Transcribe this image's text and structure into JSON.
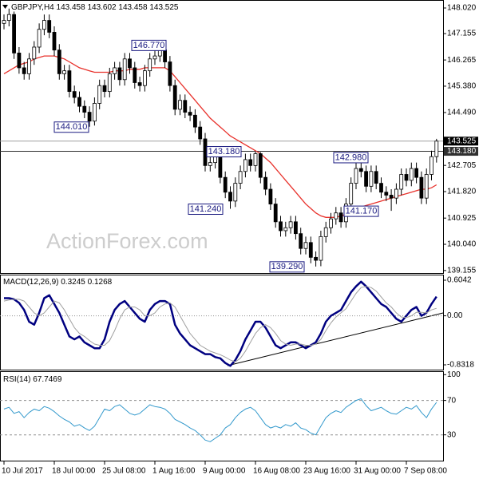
{
  "chart_data": [
    {
      "type": "candlestick",
      "title": "GBPJPY,H4",
      "last_bar": [
        {
          "value": 143.458,
          "label": "143.458"
        },
        {
          "value": 143.602,
          "label": "143.602"
        },
        {
          "value": 143.458,
          "label": "143.458"
        },
        {
          "value": 143.525,
          "label": "143.525"
        }
      ],
      "watermark": "ActionForex.com",
      "ylim": [
        139.07,
        148.29
      ],
      "yticks": [
        {
          "value": 148.02,
          "label": "148.020"
        },
        147.155,
        146.265,
        {
          "value": 145.38,
          "label": "145.380"
        },
        {
          "value": 144.49,
          "label": "144.490"
        },
        142.705,
        {
          "value": 141.82,
          "label": "141.820"
        },
        140.925,
        {
          "value": 140.04,
          "label": "140.040"
        },
        139.155
      ],
      "open": [
        147.5,
        147.6,
        147.8,
        146.5,
        146.0,
        145.8,
        146.3,
        146.7,
        147.3,
        147.6,
        147.2,
        146.6,
        145.8,
        145.9,
        145.2,
        145.0,
        144.7,
        144.5,
        144.2,
        144.8,
        145.4,
        145.2,
        145.8,
        146.0,
        145.6,
        146.3,
        146.0,
        145.5,
        145.4,
        145.9,
        146.3,
        146.4,
        146.6,
        146.2,
        145.4,
        144.6,
        144.9,
        144.5,
        144.4,
        144.0,
        143.6,
        142.7,
        142.8,
        143.0,
        142.3,
        141.8,
        141.5,
        142.1,
        142.5,
        142.9,
        142.7,
        143.1,
        142.3,
        141.9,
        141.4,
        140.8,
        140.5,
        140.6,
        140.8,
        140.4,
        139.9,
        140.1,
        139.6,
        139.5,
        140.3,
        140.6,
        140.9,
        141.1,
        140.8,
        141.4,
        142.1,
        142.6,
        142.5,
        142.0,
        142.5,
        142.1,
        141.8,
        141.7,
        141.6,
        141.9,
        142.4,
        142.2,
        142.6,
        142.3,
        141.6,
        142.4,
        143.0
      ],
      "high": [
        147.8,
        148.0,
        147.9,
        146.7,
        146.2,
        146.5,
        146.9,
        147.5,
        147.8,
        147.8,
        147.4,
        146.8,
        146.1,
        146.1,
        145.4,
        145.2,
        144.9,
        144.7,
        145.0,
        145.6,
        145.6,
        146.0,
        146.2,
        146.2,
        146.5,
        146.5,
        146.2,
        145.7,
        146.1,
        146.5,
        146.6,
        146.77,
        146.75,
        146.4,
        145.6,
        145.1,
        145.1,
        144.7,
        144.6,
        144.2,
        143.8,
        143.0,
        143.2,
        143.2,
        142.5,
        142.0,
        142.3,
        142.7,
        143.1,
        143.1,
        143.18,
        143.15,
        142.5,
        142.1,
        141.6,
        141.0,
        140.8,
        141.0,
        141.0,
        140.6,
        140.3,
        140.3,
        139.8,
        140.5,
        140.8,
        141.1,
        141.3,
        141.3,
        141.6,
        142.3,
        142.8,
        142.98,
        142.7,
        142.7,
        142.7,
        142.3,
        142.0,
        141.9,
        142.1,
        142.6,
        142.6,
        142.8,
        142.8,
        142.5,
        142.6,
        143.2,
        143.602
      ],
      "low": [
        147.3,
        147.4,
        146.3,
        145.8,
        145.6,
        145.6,
        146.1,
        146.5,
        147.1,
        147.0,
        146.4,
        145.6,
        145.6,
        145.0,
        144.8,
        144.5,
        144.3,
        144.01,
        144.05,
        144.6,
        145.0,
        145.0,
        145.6,
        145.4,
        145.4,
        145.8,
        145.3,
        145.2,
        145.2,
        145.7,
        146.1,
        146.2,
        146.0,
        145.2,
        144.4,
        144.4,
        144.3,
        144.2,
        143.8,
        143.4,
        142.5,
        142.5,
        142.6,
        142.1,
        141.6,
        141.24,
        141.3,
        141.9,
        142.3,
        142.5,
        142.5,
        142.1,
        141.7,
        141.2,
        140.6,
        140.3,
        140.3,
        140.4,
        140.2,
        139.7,
        139.7,
        139.4,
        139.29,
        139.3,
        140.1,
        140.4,
        140.7,
        140.6,
        140.6,
        141.2,
        141.9,
        142.3,
        141.8,
        141.8,
        141.9,
        141.6,
        141.5,
        141.17,
        141.4,
        141.7,
        142.0,
        142.0,
        142.1,
        141.4,
        141.4,
        142.2,
        142.8
      ],
      "close": [
        147.6,
        147.8,
        146.5,
        146.0,
        145.8,
        146.3,
        146.7,
        147.3,
        147.6,
        147.2,
        146.6,
        145.8,
        145.9,
        145.2,
        145.0,
        144.7,
        144.5,
        144.2,
        144.8,
        145.4,
        145.2,
        145.8,
        146.0,
        145.6,
        146.3,
        146.0,
        145.5,
        145.4,
        145.9,
        146.3,
        146.4,
        146.6,
        146.2,
        145.4,
        144.6,
        144.9,
        144.5,
        144.4,
        144.0,
        143.6,
        142.7,
        142.8,
        143.0,
        142.3,
        141.8,
        141.5,
        142.1,
        142.5,
        142.9,
        142.7,
        143.1,
        142.3,
        141.9,
        141.4,
        140.8,
        140.5,
        140.6,
        140.8,
        140.4,
        139.9,
        140.1,
        139.6,
        139.5,
        140.3,
        140.6,
        140.9,
        141.1,
        140.8,
        141.4,
        142.1,
        142.6,
        142.5,
        142.0,
        142.5,
        142.1,
        141.8,
        141.7,
        141.6,
        141.9,
        142.4,
        142.2,
        142.6,
        142.3,
        141.6,
        142.4,
        143.0,
        143.525
      ],
      "candle_color": "#000000",
      "overlay": {
        "color": "#e8312b",
        "values": [
          145.8,
          145.9,
          146.0,
          146.1,
          146.15,
          146.2,
          146.3,
          146.35,
          146.4,
          146.4,
          146.4,
          146.35,
          146.3,
          146.2,
          146.1,
          146.0,
          145.95,
          145.9,
          145.85,
          145.85,
          145.85,
          145.85,
          145.9,
          145.9,
          145.9,
          145.95,
          145.95,
          145.95,
          146.0,
          146.0,
          146.0,
          146.0,
          146.0,
          145.9,
          145.7,
          145.5,
          145.3,
          145.1,
          144.9,
          144.7,
          144.5,
          144.3,
          144.15,
          144.0,
          143.85,
          143.7,
          143.6,
          143.5,
          143.4,
          143.3,
          143.2,
          143.1,
          142.95,
          142.8,
          142.6,
          142.4,
          142.2,
          142.0,
          141.8,
          141.6,
          141.4,
          141.25,
          141.1,
          141.0,
          140.95,
          140.95,
          140.95,
          141.0,
          141.05,
          141.1,
          141.2,
          141.3,
          141.35,
          141.4,
          141.45,
          141.5,
          141.55,
          141.6,
          141.65,
          141.7,
          141.75,
          141.8,
          141.85,
          141.9,
          141.9,
          141.95,
          142.05
        ]
      },
      "price_line_color": "#a0a0a0",
      "levels": [
        {
          "value": 143.18,
          "label": "143.180",
          "color": "#303030"
        }
      ],
      "annotations": [
        {
          "value": 146.77,
          "label": "146.770"
        },
        {
          "value": 144.01,
          "label": "144.010"
        },
        {
          "value": 143.18,
          "label": "143.180"
        },
        {
          "value": 142.98,
          "label": "142.980"
        },
        {
          "value": 141.24,
          "label": "141.240"
        },
        {
          "value": 141.17,
          "label": "141.170"
        },
        {
          "value": 139.29,
          "label": "139.290"
        }
      ]
    },
    {
      "type": "line",
      "title": "MACD(12,26,9)",
      "ylim": [
        -0.913,
        0.699
      ],
      "yticks": [
        0.6042,
        {
          "value": 0,
          "label": "0.00"
        },
        -0.8318
      ],
      "levels": [
        0
      ],
      "series": [
        {
          "color": "#000080",
          "width": 2.5,
          "values": [
            0.3,
            0.3,
            0.28,
            0.22,
            0.1,
            -0.1,
            -0.15,
            0.05,
            0.3,
            0.35,
            0.2,
            0.05,
            -0.15,
            -0.35,
            -0.4,
            -0.35,
            -0.45,
            -0.5,
            -0.55,
            -0.55,
            -0.4,
            -0.1,
            0.1,
            0.2,
            0.25,
            0.15,
            0.05,
            -0.05,
            -0.1,
            0.1,
            0.2,
            0.25,
            0.25,
            0.2,
            -0.15,
            -0.3,
            -0.4,
            -0.5,
            -0.55,
            -0.6,
            -0.65,
            -0.65,
            -0.7,
            -0.72,
            -0.8,
            -0.85,
            -0.75,
            -0.6,
            -0.4,
            -0.25,
            -0.1,
            -0.1,
            -0.2,
            -0.35,
            -0.5,
            -0.55,
            -0.5,
            -0.45,
            -0.45,
            -0.5,
            -0.55,
            -0.5,
            -0.45,
            -0.3,
            -0.1,
            0,
            0.05,
            0.1,
            0.25,
            0.4,
            0.5,
            0.58,
            0.5,
            0.4,
            0.3,
            0.2,
            0.15,
            0.05,
            -0.05,
            -0.1,
            0,
            0.1,
            0.15,
            0,
            0.05,
            0.2,
            0.3245
          ]
        },
        {
          "color": "#a0a0a0",
          "width": 1,
          "values": [
            0.25,
            0.27,
            0.28,
            0.28,
            0.25,
            0.15,
            0.05,
            0,
            0.05,
            0.15,
            0.25,
            0.22,
            0.1,
            -0.05,
            -0.2,
            -0.3,
            -0.35,
            -0.42,
            -0.48,
            -0.5,
            -0.5,
            -0.42,
            -0.25,
            -0.05,
            0.1,
            0.15,
            0.15,
            0.1,
            0,
            0,
            0.05,
            0.15,
            0.2,
            0.22,
            0.15,
            0,
            -0.15,
            -0.3,
            -0.4,
            -0.5,
            -0.55,
            -0.6,
            -0.63,
            -0.66,
            -0.7,
            -0.75,
            -0.78,
            -0.72,
            -0.6,
            -0.45,
            -0.3,
            -0.2,
            -0.15,
            -0.2,
            -0.3,
            -0.42,
            -0.48,
            -0.5,
            -0.48,
            -0.48,
            -0.5,
            -0.5,
            -0.48,
            -0.4,
            -0.25,
            -0.12,
            -0.02,
            0.05,
            0.12,
            0.25,
            0.38,
            0.48,
            0.5,
            0.48,
            0.42,
            0.32,
            0.22,
            0.15,
            0.05,
            -0.02,
            -0.03,
            0,
            0.06,
            0.06,
            0.05,
            0.1,
            0.1268
          ]
        }
      ]
    },
    {
      "type": "line",
      "title": "RSI(14)",
      "ylim": [
        0,
        104
      ],
      "yticks": [
        100,
        70,
        30
      ],
      "levels": [
        70,
        30
      ],
      "series": [
        {
          "color": "#3399cc",
          "width": 1,
          "values": [
            60,
            62,
            55,
            57,
            50,
            56,
            60,
            58,
            63,
            61,
            57,
            52,
            48,
            45,
            40,
            42,
            38,
            35,
            40,
            50,
            60,
            58,
            63,
            65,
            60,
            55,
            53,
            55,
            60,
            65,
            63,
            62,
            60,
            55,
            48,
            45,
            42,
            38,
            35,
            30,
            24,
            22,
            26,
            30,
            38,
            42,
            50,
            56,
            60,
            62,
            58,
            50,
            42,
            38,
            40,
            38,
            42,
            40,
            44,
            38,
            36,
            32,
            30,
            40,
            50,
            55,
            58,
            56,
            62,
            66,
            70,
            72,
            64,
            58,
            60,
            62,
            58,
            55,
            54,
            58,
            62,
            60,
            64,
            56,
            50,
            60,
            67.7469
          ]
        }
      ],
      "xtick_labels": [
        "10 Jul 2017",
        "18 Jul 00:00",
        "25 Jul 08:00",
        "1 Aug 16:00",
        "9 Aug 00:00",
        "16 Aug 08:00",
        "23 Aug 16:00",
        "31 Aug 00:00",
        "7 Sep 08:00"
      ]
    }
  ]
}
